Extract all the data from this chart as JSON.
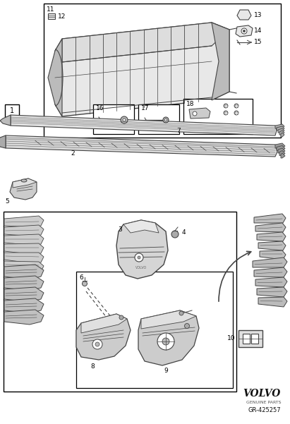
{
  "bg_color": "#ffffff",
  "border_color": "#000000",
  "line_color": "#444444",
  "gray_fill": "#cccccc",
  "light_gray": "#e8e8e8",
  "volvo_text": "VOLVO",
  "genuine_parts": "GENUINE PARTS",
  "part_number": "GR-425257",
  "fig_width": 4.11,
  "fig_height": 6.01,
  "dpi": 100
}
